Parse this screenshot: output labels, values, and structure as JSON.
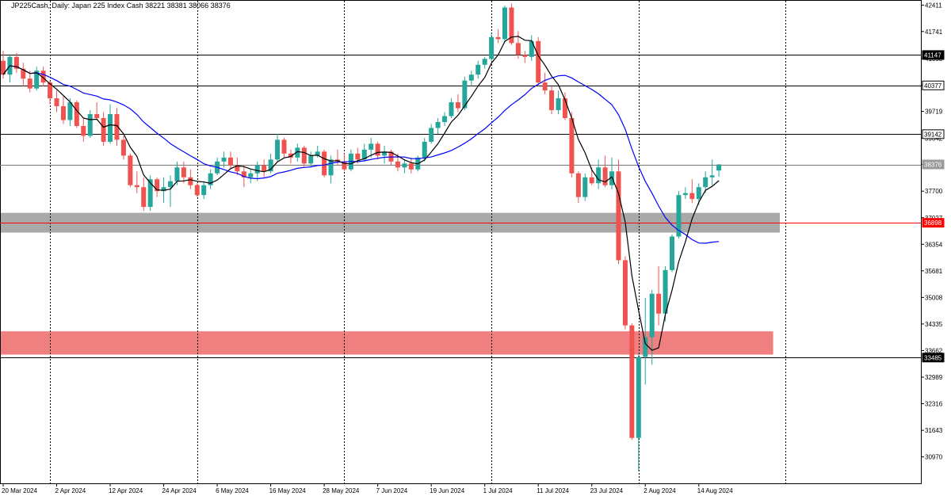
{
  "chart_data": {
    "type": "candlestick",
    "title": "JP225Cash, Daily:  Japan 225 Index Cash  38221 38381 38066 38376",
    "ylim": [
      30300,
      42520
    ],
    "y_ticks": [
      42411,
      41741,
      41058,
      40377,
      39719,
      39042,
      38376,
      37700,
      37027,
      36354,
      35681,
      35008,
      34335,
      33662,
      32989,
      32316,
      31643,
      30970
    ],
    "x_tick_labels": [
      "20 Mar 2024",
      "2 Apr 2024",
      "12 Apr 2024",
      "24 Apr 2024",
      "6 May 2024",
      "16 May 2024",
      "28 May 2024",
      "7 Jun 2024",
      "19 Jun 2024",
      "1 Jul 2024",
      "11 Jul 2024",
      "23 Jul 2024",
      "2 Aug 2024",
      "14 Aug 2024"
    ],
    "x_tick_index": [
      0,
      8,
      16,
      24,
      32,
      40,
      48,
      56,
      64,
      72,
      80,
      88,
      96,
      104
    ],
    "dividers_index": [
      7,
      29,
      51,
      73,
      95,
      117
    ],
    "h_levels": [
      {
        "value": 41147,
        "label": "41147",
        "color": "#000000",
        "label_style": "black"
      },
      {
        "value": 40377,
        "label": "40377",
        "color": "#000000",
        "label_style": "outline"
      },
      {
        "value": 39142,
        "label": "39142",
        "color": "#000000",
        "label_style": "outline"
      },
      {
        "value": 38376,
        "label": "38376",
        "color": "#777777",
        "label_style": "gray"
      },
      {
        "value": 36898,
        "label": "36898",
        "color": "#ff0000",
        "label_style": "red"
      },
      {
        "value": 33485,
        "label": "33485",
        "color": "#000000",
        "label_style": "black"
      }
    ],
    "zones": [
      {
        "from": 36650,
        "to": 37150,
        "color": "#a9a9a9",
        "end_index": 116
      },
      {
        "from": 33560,
        "to": 34150,
        "color": "#f08080",
        "end_index": 115
      }
    ],
    "colors": {
      "up": "#26a69a",
      "down": "#ef5350",
      "ma_fast": "#000000",
      "ma_slow": "#0000ff"
    },
    "candles": [
      [
        41000,
        41250,
        40550,
        40650
      ],
      [
        40650,
        41150,
        40450,
        41100
      ],
      [
        41100,
        41200,
        40700,
        40800
      ],
      [
        40800,
        40950,
        40350,
        40550
      ],
      [
        40550,
        40750,
        40200,
        40300
      ],
      [
        40300,
        40850,
        40250,
        40750
      ],
      [
        40750,
        40850,
        40350,
        40450
      ],
      [
        40450,
        40500,
        39900,
        40050
      ],
      [
        40050,
        40250,
        39700,
        39850
      ],
      [
        39850,
        40100,
        39400,
        39500
      ],
      [
        39500,
        40050,
        39350,
        39950
      ],
      [
        39950,
        40000,
        39300,
        39350
      ],
      [
        39350,
        39550,
        38950,
        39100
      ],
      [
        39100,
        39750,
        39050,
        39650
      ],
      [
        39650,
        39950,
        39500,
        39550
      ],
      [
        39550,
        39700,
        38850,
        38950
      ],
      [
        38950,
        39900,
        38900,
        39650
      ],
      [
        39650,
        39800,
        38850,
        39000
      ],
      [
        39000,
        39100,
        38500,
        38600
      ],
      [
        38600,
        38650,
        37800,
        37850
      ],
      [
        37850,
        38200,
        37650,
        37800
      ],
      [
        37800,
        38050,
        37200,
        37300
      ],
      [
        37300,
        38100,
        37200,
        38000
      ],
      [
        38000,
        38050,
        37550,
        37700
      ],
      [
        37700,
        38050,
        37400,
        37800
      ],
      [
        37800,
        38100,
        37300,
        37950
      ],
      [
        37950,
        38450,
        37850,
        38300
      ],
      [
        38300,
        38450,
        37900,
        38050
      ],
      [
        38050,
        38250,
        37750,
        37850
      ],
      [
        37850,
        37900,
        37550,
        37600
      ],
      [
        37600,
        37950,
        37500,
        37850
      ],
      [
        37850,
        38250,
        37750,
        38150
      ],
      [
        38150,
        38550,
        38100,
        38450
      ],
      [
        38450,
        38700,
        38300,
        38550
      ],
      [
        38550,
        38700,
        38250,
        38350
      ],
      [
        38350,
        38550,
        38100,
        38200
      ],
      [
        38200,
        38350,
        37800,
        38050
      ],
      [
        38050,
        38250,
        37900,
        38150
      ],
      [
        38150,
        38450,
        37950,
        38350
      ],
      [
        38350,
        38500,
        38050,
        38200
      ],
      [
        38200,
        38650,
        38150,
        38500
      ],
      [
        38500,
        39150,
        38450,
        39000
      ],
      [
        39000,
        39050,
        38550,
        38650
      ],
      [
        38650,
        38750,
        38400,
        38550
      ],
      [
        38550,
        38900,
        38450,
        38800
      ],
      [
        38800,
        38850,
        38300,
        38400
      ],
      [
        38400,
        38700,
        38300,
        38600
      ],
      [
        38600,
        38850,
        38550,
        38700
      ],
      [
        38700,
        38750,
        38050,
        38100
      ],
      [
        38100,
        38600,
        37900,
        38500
      ],
      [
        38500,
        38750,
        38350,
        38450
      ],
      [
        38450,
        38650,
        38200,
        38250
      ],
      [
        38250,
        38750,
        38200,
        38650
      ],
      [
        38650,
        38800,
        38400,
        38500
      ],
      [
        38500,
        38900,
        38450,
        38750
      ],
      [
        38750,
        39050,
        38550,
        38900
      ],
      [
        38900,
        38950,
        38500,
        38600
      ],
      [
        38600,
        38850,
        38400,
        38700
      ],
      [
        38700,
        38750,
        38350,
        38450
      ],
      [
        38450,
        38650,
        38200,
        38300
      ],
      [
        38300,
        38500,
        38150,
        38400
      ],
      [
        38400,
        38550,
        38150,
        38250
      ],
      [
        38250,
        38600,
        38200,
        38550
      ],
      [
        38550,
        39050,
        38450,
        38950
      ],
      [
        38950,
        39400,
        38900,
        39300
      ],
      [
        39300,
        39550,
        39150,
        39450
      ],
      [
        39450,
        39700,
        39350,
        39600
      ],
      [
        39600,
        40050,
        39550,
        39950
      ],
      [
        39950,
        40150,
        39700,
        39800
      ],
      [
        39800,
        40600,
        39750,
        40500
      ],
      [
        40500,
        40750,
        40350,
        40650
      ],
      [
        40650,
        41000,
        40550,
        40900
      ],
      [
        40900,
        41100,
        40800,
        41050
      ],
      [
        41050,
        41700,
        41000,
        41600
      ],
      [
        41600,
        41800,
        41450,
        41550
      ],
      [
        41550,
        42400,
        41500,
        42350
      ],
      [
        42350,
        42450,
        41400,
        41450
      ],
      [
        41450,
        41750,
        41050,
        41150
      ],
      [
        41150,
        41250,
        40950,
        41100
      ],
      [
        41100,
        41650,
        41000,
        41500
      ],
      [
        41500,
        41600,
        40350,
        40450
      ],
      [
        40450,
        40700,
        40150,
        40250
      ],
      [
        40250,
        40350,
        39650,
        39750
      ],
      [
        39750,
        40250,
        39650,
        40050
      ],
      [
        40050,
        40200,
        39500,
        39550
      ],
      [
        39550,
        39700,
        38050,
        38150
      ],
      [
        38150,
        38200,
        37400,
        37550
      ],
      [
        37550,
        38150,
        37450,
        38050
      ],
      [
        38050,
        38300,
        37850,
        37900
      ],
      [
        37900,
        38500,
        37750,
        38300
      ],
      [
        38300,
        38600,
        37800,
        37850
      ],
      [
        37850,
        38550,
        37750,
        38200
      ],
      [
        38200,
        38500,
        35850,
        35950
      ],
      [
        35950,
        36050,
        34200,
        34300
      ],
      [
        34300,
        34350,
        31400,
        31450
      ],
      [
        31450,
        33600,
        30600,
        33500
      ],
      [
        33500,
        35000,
        32800,
        34000
      ],
      [
        34000,
        35200,
        33300,
        35100
      ],
      [
        35100,
        35800,
        34300,
        34600
      ],
      [
        34600,
        35800,
        34400,
        35700
      ],
      [
        35700,
        36600,
        35650,
        36550
      ],
      [
        36550,
        37700,
        36500,
        37600
      ],
      [
        37600,
        37800,
        37500,
        37650
      ],
      [
        37650,
        38000,
        37400,
        37500
      ],
      [
        37500,
        37900,
        37350,
        37800
      ],
      [
        37800,
        38200,
        37650,
        38050
      ],
      [
        38050,
        38500,
        37850,
        38100
      ],
      [
        38221,
        38381,
        38066,
        38376
      ]
    ]
  }
}
